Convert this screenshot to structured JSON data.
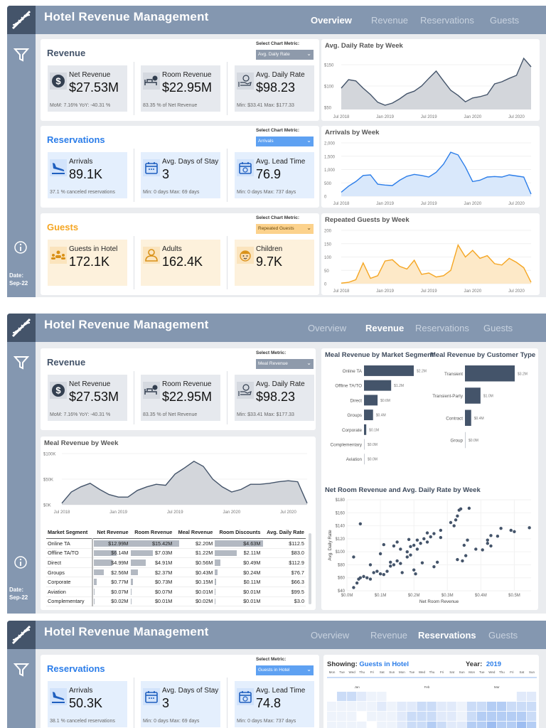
{
  "app": {
    "title": "Hotel Revenue Management",
    "nav": [
      "Overview",
      "Revenue",
      "Reservations",
      "Guests"
    ],
    "date_label": "Date:",
    "date_value": "Sep-22"
  },
  "colors": {
    "header": "#8497b0",
    "logo_bg": "#44546a",
    "revenue": "#44546a",
    "reservations": "#2b7de9",
    "guests": "#f5a623"
  },
  "overview": {
    "revenue": {
      "title": "Revenue",
      "select_label": "Select Chart Metric:",
      "select_value": "Avg. Daily Rate",
      "tiles": [
        {
          "label": "Net Revenue",
          "value": "$27.53M",
          "foot": "MoM: 7.16%      YoY: -40.31 %",
          "icon": "dollar-icon"
        },
        {
          "label": "Room Revenue",
          "value": "$22.95M",
          "foot": "83.35 % of Net Revenue",
          "icon": "bed-icon"
        },
        {
          "label": "Avg. Daily Rate",
          "value": "$98.23",
          "foot": "Min: $33.41     Max:  $177.33",
          "icon": "hand-coin-icon"
        }
      ]
    },
    "reservations": {
      "title": "Reservations",
      "select_label": "Select Chart Metric:",
      "select_value": "Arrivals",
      "tiles": [
        {
          "label": "Arrivals",
          "value": "89.1K",
          "foot": "37.1 %  canceled reservations",
          "icon": "plane-landing-icon"
        },
        {
          "label": "Avg. Days of Stay",
          "value": "3",
          "foot": "Min: 0 days     Max:  69 days",
          "icon": "calendar-icon"
        },
        {
          "label": "Avg. Lead Time",
          "value": "76.9",
          "foot": "Min: 0 days     Max:  737 days",
          "icon": "calendar-clock-icon"
        }
      ]
    },
    "guests": {
      "title": "Guests",
      "select_label": "Select Chart Metric:",
      "select_value": "Repeated Guests",
      "tiles": [
        {
          "label": "Guests in Hotel",
          "value": "172.1K",
          "foot": "",
          "icon": "group-icon"
        },
        {
          "label": "Adults",
          "value": "162.4K",
          "foot": "",
          "icon": "person-icon"
        },
        {
          "label": "Children",
          "value": "9.7K",
          "foot": "",
          "icon": "child-face-icon"
        }
      ]
    }
  },
  "revenue_page": {
    "revenue": {
      "title": "Revenue",
      "select_label": "Select Metric:",
      "select_value": "Meal Revenue"
    },
    "table": {
      "columns": [
        "Market Segment",
        "Net Revenue",
        "Room Revenue",
        "Meal Revenue",
        "Room Discounts",
        "Avg. Daily Rate"
      ],
      "rows": [
        [
          "Online TA",
          "$12.99M",
          "$15.42M",
          "$2.20M",
          "$4.63M",
          "$112.5"
        ],
        [
          "Offline TA/TO",
          "$6.14M",
          "$7.03M",
          "$1.22M",
          "$2.11M",
          "$83.0"
        ],
        [
          "Direct",
          "$4.99M",
          "$4.91M",
          "$0.56M",
          "$0.49M",
          "$112.9"
        ],
        [
          "Groups",
          "$2.56M",
          "$2.37M",
          "$0.43M",
          "$0.24M",
          "$76.7"
        ],
        [
          "Corporate",
          "$0.77M",
          "$0.73M",
          "$0.15M",
          "$0.11M",
          "$66.3"
        ],
        [
          "Aviation",
          "$0.07M",
          "$0.07M",
          "$0.01M",
          "$0.01M",
          "$99.5"
        ],
        [
          "Complementary",
          "$0.02M",
          "$0.01M",
          "$0.02M",
          "$0.01M",
          "$3.0"
        ]
      ],
      "bar_values": [
        [
          12.99,
          15.42,
          4.63
        ],
        [
          6.14,
          7.03,
          2.11
        ],
        [
          4.99,
          4.91,
          0.49
        ],
        [
          2.56,
          2.37,
          0.24
        ],
        [
          0.77,
          0.73,
          0.11
        ],
        [
          0.07,
          0.07,
          0.01
        ],
        [
          0.02,
          0.01,
          0.01
        ]
      ]
    }
  },
  "reservations_page": {
    "title": "Reservations",
    "select_label": "Select Metric:",
    "select_value": "Guests in Hotel",
    "tiles": [
      {
        "label": "Arrivals",
        "value": "50.3K",
        "foot": "38.1 %  canceled reservations",
        "icon": "plane-landing-icon"
      },
      {
        "label": "Avg. Days of Stay",
        "value": "3",
        "foot": "Min: 0 days     Max:  69 days",
        "icon": "calendar-icon"
      },
      {
        "label": "Avg. Lead Time",
        "value": "74.8",
        "foot": "Min: 0 days     Max:  737 days",
        "icon": "calendar-clock-icon"
      }
    ],
    "calendar": {
      "showing_label": "Showing:",
      "showing_value": "Guests in Hotel",
      "year_label": "Year:",
      "year_value": "2019",
      "weekdays": [
        "Mon",
        "Tue",
        "Wed",
        "Thu",
        "Fri",
        "Sat",
        "Sun"
      ],
      "months": [
        "Jan",
        "Feb",
        "Mar"
      ],
      "intensity": [
        [
          0,
          3,
          3,
          2,
          1,
          1,
          0,
          0,
          0,
          0,
          0,
          0,
          0,
          0,
          0,
          0,
          0,
          0,
          0,
          2,
          2
        ],
        [
          1,
          1,
          1,
          1,
          1,
          2,
          1,
          2,
          2,
          3,
          3,
          2,
          2,
          1,
          3,
          3,
          4,
          4,
          3,
          3,
          3
        ],
        [
          1,
          1,
          1,
          0,
          1,
          1,
          1,
          2,
          3,
          3,
          3,
          2,
          2,
          1,
          3,
          4,
          4,
          4,
          4,
          4,
          3
        ],
        [
          1,
          1,
          1,
          1,
          0,
          1,
          1,
          2,
          3,
          3,
          4,
          3,
          2,
          2,
          4,
          4,
          5,
          4,
          4,
          5,
          4
        ]
      ]
    }
  },
  "chart_data": [
    {
      "id": "adr",
      "type": "area",
      "title": "Avg. Daily Rate by Week",
      "x": [
        "Jul 2018",
        "Aug 2018",
        "Sep 2018",
        "Oct 2018",
        "Nov 2018",
        "Dec 2018",
        "Jan 2019",
        "Feb 2019",
        "Mar 2019",
        "Apr 2019",
        "May 2019",
        "Jun 2019",
        "Jul 2019",
        "Aug 2019",
        "Sep 2019",
        "Oct 2019",
        "Nov 2019",
        "Dec 2019",
        "Jan 2020",
        "Feb 2020",
        "Mar 2020",
        "Apr 2020",
        "May 2020",
        "Jun 2020",
        "Jul 2020",
        "Aug 2020",
        "Sep 2020"
      ],
      "values": [
        95,
        115,
        112,
        95,
        80,
        62,
        55,
        60,
        70,
        82,
        88,
        100,
        118,
        135,
        112,
        90,
        78,
        63,
        72,
        75,
        80,
        105,
        110,
        118,
        125,
        165,
        145
      ],
      "ylim": [
        45,
        170
      ],
      "yticks": [
        50,
        100,
        150
      ],
      "ytick_labels": [
        "$50",
        "$100",
        "$150"
      ],
      "xtick_labels": [
        "Jul 2018",
        "Jan 2019",
        "Jul 2019",
        "Jan 2020",
        "Jul 2020"
      ],
      "color": "#44546a",
      "fill": "#d3d6db"
    },
    {
      "id": "arr",
      "type": "area",
      "title": "Arrivals by Week",
      "x_ref": "adr",
      "values": [
        150,
        380,
        550,
        780,
        800,
        450,
        420,
        400,
        600,
        750,
        820,
        780,
        720,
        900,
        1200,
        1650,
        1550,
        1100,
        550,
        600,
        720,
        740,
        720,
        800,
        760,
        720,
        80
      ],
      "ylim": [
        0,
        2000
      ],
      "yticks": [
        0,
        500,
        1000,
        1500,
        2000
      ],
      "ytick_labels": [
        "0",
        "500",
        "1,000",
        "1,500",
        "2,000"
      ],
      "xtick_labels": [
        "Jul 2018",
        "Jan 2019",
        "Jul 2019",
        "Jan 2020",
        "Jul 2020"
      ],
      "color": "#2b7de9",
      "fill": "#d9e8fb"
    },
    {
      "id": "rep",
      "type": "area",
      "title": "Repeated Guests by Week",
      "x_ref": "adr",
      "values": [
        2,
        5,
        15,
        78,
        20,
        30,
        85,
        90,
        65,
        55,
        88,
        35,
        40,
        25,
        30,
        50,
        145,
        100,
        125,
        95,
        105,
        75,
        70,
        95,
        80,
        60,
        5
      ],
      "ylim": [
        0,
        200
      ],
      "yticks": [
        0,
        50,
        100,
        150,
        200
      ],
      "ytick_labels": [
        "0",
        "50",
        "100",
        "150",
        "200"
      ],
      "xtick_labels": [
        "Jul 2018",
        "Jan 2019",
        "Jul 2019",
        "Jan 2020",
        "Jul 2020"
      ],
      "color": "#f5a623",
      "fill": "#fde9c8"
    },
    {
      "id": "meal",
      "type": "area",
      "title": "Meal Revenue by Week",
      "x_ref": "adr",
      "values": [
        3,
        25,
        35,
        42,
        30,
        20,
        15,
        15,
        28,
        35,
        40,
        38,
        60,
        72,
        85,
        75,
        50,
        35,
        25,
        30,
        40,
        40,
        42,
        45,
        47,
        45,
        3
      ],
      "ylim": [
        0,
        100
      ],
      "yticks": [
        0,
        50,
        100
      ],
      "ytick_labels": [
        "$0K",
        "$50K",
        "$100K"
      ],
      "xtick_labels": [
        "Jul 2018",
        "Jan 2019",
        "Jul 2019",
        "Jan 2020",
        "Jul 2020"
      ],
      "color": "#44546a",
      "fill": "#d3d6db"
    },
    {
      "id": "seg",
      "type": "bar",
      "title": "Meal Revenue by Market Segment",
      "categories": [
        "Online TA",
        "Offline TA/TO",
        "Direct",
        "Groups",
        "Corporate",
        "Complementary",
        "Aviation"
      ],
      "values": [
        2.2,
        1.2,
        0.6,
        0.4,
        0.1,
        0.0,
        0.0
      ],
      "labels": [
        "$2.2M",
        "$1.2M",
        "$0.6M",
        "$0.4M",
        "$0.1M",
        "$0.0M",
        "$0.0M"
      ],
      "color": "#44546a"
    },
    {
      "id": "cust",
      "type": "bar",
      "title": "Meal Revenue by Customer Type",
      "categories": [
        "Transient",
        "Transient-Party",
        "Contract",
        "Group"
      ],
      "values": [
        3.2,
        1.0,
        0.4,
        0.0
      ],
      "labels": [
        "$3.2M",
        "$1.0M",
        "$0.4M",
        "$0.0M"
      ],
      "color": "#44546a"
    },
    {
      "id": "scat",
      "type": "scatter",
      "title": "Net Room Revenue and Avg. Daily Rate by Week",
      "xlabel": "Net Room Revenue",
      "ylabel": "Avg. Daily Rate",
      "xlim": [
        0,
        0.55
      ],
      "ylim": [
        40,
        180
      ],
      "xticks": [
        0,
        0.1,
        0.2,
        0.3,
        0.4,
        0.5
      ],
      "xtick_labels": [
        "$0.0M",
        "$0.1M",
        "$0.2M",
        "$0.3M",
        "$0.4M",
        "$0.5M"
      ],
      "yticks": [
        40,
        60,
        80,
        100,
        120,
        140,
        160,
        180
      ],
      "ytick_labels": [
        "$40",
        "$60",
        "$80",
        "$100",
        "$120",
        "$140",
        "$160",
        "$180"
      ],
      "points": [
        [
          0.02,
          45
        ],
        [
          0.02,
          92
        ],
        [
          0.03,
          52
        ],
        [
          0.035,
          58
        ],
        [
          0.04,
          60
        ],
        [
          0.04,
          143
        ],
        [
          0.05,
          62
        ],
        [
          0.06,
          60
        ],
        [
          0.07,
          58
        ],
        [
          0.07,
          80
        ],
        [
          0.08,
          68
        ],
        [
          0.09,
          70
        ],
        [
          0.1,
          66
        ],
        [
          0.1,
          97
        ],
        [
          0.11,
          65
        ],
        [
          0.11,
          111
        ],
        [
          0.12,
          70
        ],
        [
          0.13,
          78
        ],
        [
          0.13,
          84
        ],
        [
          0.14,
          80
        ],
        [
          0.14,
          109
        ],
        [
          0.15,
          86
        ],
        [
          0.15,
          115
        ],
        [
          0.16,
          82
        ],
        [
          0.16,
          104
        ],
        [
          0.165,
          68
        ],
        [
          0.18,
          92
        ],
        [
          0.18,
          100
        ],
        [
          0.185,
          119
        ],
        [
          0.19,
          95
        ],
        [
          0.19,
          108
        ],
        [
          0.2,
          110
        ],
        [
          0.2,
          72
        ],
        [
          0.205,
          66
        ],
        [
          0.21,
          104
        ],
        [
          0.21,
          118
        ],
        [
          0.22,
          113
        ],
        [
          0.225,
          83
        ],
        [
          0.23,
          120
        ],
        [
          0.24,
          115
        ],
        [
          0.24,
          129
        ],
        [
          0.25,
          123
        ],
        [
          0.26,
          77
        ],
        [
          0.26,
          128
        ],
        [
          0.27,
          84
        ],
        [
          0.28,
          122
        ],
        [
          0.28,
          133
        ],
        [
          0.31,
          145
        ],
        [
          0.32,
          140
        ],
        [
          0.325,
          149
        ],
        [
          0.33,
          155
        ],
        [
          0.335,
          164
        ],
        [
          0.34,
          166
        ],
        [
          0.33,
          88
        ],
        [
          0.345,
          86
        ],
        [
          0.35,
          110
        ],
        [
          0.355,
          94
        ],
        [
          0.36,
          118
        ],
        [
          0.365,
          167
        ],
        [
          0.385,
          104
        ],
        [
          0.405,
          103
        ],
        [
          0.42,
          113
        ],
        [
          0.42,
          118
        ],
        [
          0.43,
          125
        ],
        [
          0.43,
          109
        ],
        [
          0.45,
          124
        ],
        [
          0.46,
          136
        ],
        [
          0.49,
          133
        ],
        [
          0.5,
          131
        ],
        [
          0.545,
          137
        ]
      ],
      "color": "#44546a"
    }
  ]
}
